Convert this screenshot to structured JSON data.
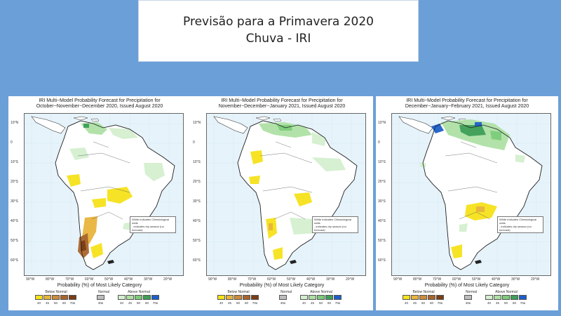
{
  "header": {
    "title_line1": "Previsão para a Primavera 2020",
    "title_line2": "Chuva - IRI"
  },
  "panels": [
    {
      "title_line1": "IRI Multi−Model Probability Forecast for Precipitation for",
      "title_line2": "October−November−December 2020, Issued August 2020"
    },
    {
      "title_line1": "IRI Multi−Model Probability Forecast for Precipitation for",
      "title_line2": "November−December−January 2021, Issued August 2020"
    },
    {
      "title_line1": "IRI Multi−Model Probability Forecast for Precipitation for",
      "title_line2": "December−January−February 2021, Issued August 2020"
    }
  ],
  "map_axes": {
    "lat_labels": [
      "10°N",
      "0",
      "10°S",
      "20°S",
      "30°S",
      "40°S",
      "50°S",
      "60°S"
    ],
    "lon_labels": [
      "90°W",
      "80°W",
      "70°W",
      "60°W",
      "50°W",
      "40°W",
      "30°W",
      "20°W"
    ]
  },
  "map_note": {
    "line1": "White indicates Climatological odds",
    "line2": "- indicates dry season (no forecast)"
  },
  "legend": {
    "axis_title": "Probability (%) of Most Likely Category",
    "below_label": "Below Normal",
    "normal_label": "Normal",
    "above_label": "Above Normal",
    "below_values": [
      "40",
      "45",
      "50",
      "60",
      "70≤"
    ],
    "normal_values": [
      "40≤"
    ],
    "above_values": [
      "40",
      "45",
      "50",
      "60",
      "70≤"
    ],
    "below_colors": [
      "#f5e21a",
      "#e8b43c",
      "#cf8a3c",
      "#a9642c",
      "#7a3d14"
    ],
    "normal_colors": [
      "#bdbdbd"
    ],
    "above_colors": [
      "#d4efcf",
      "#aee0a4",
      "#7ccc7a",
      "#3f9e58",
      "#1c5fc9"
    ]
  },
  "colors": {
    "slide_background": "#6b9fd8",
    "ocean": "#e6f3fb",
    "land": "#ffffff"
  }
}
